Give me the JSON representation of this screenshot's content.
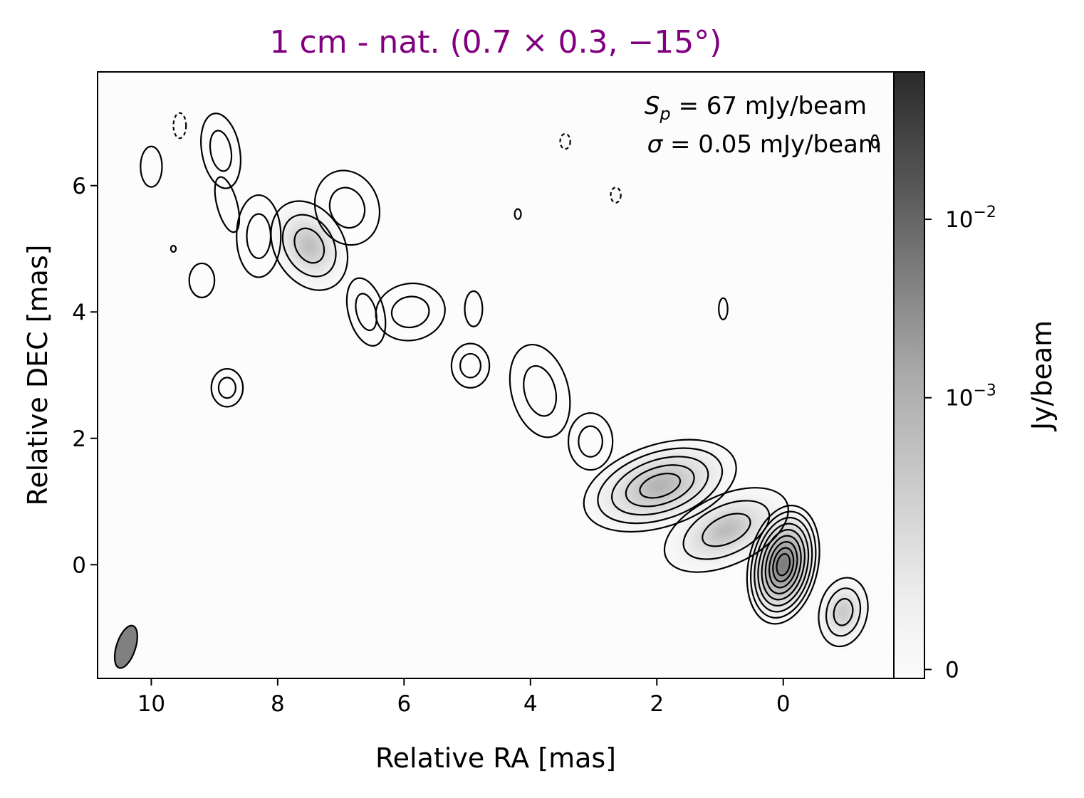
{
  "chart_data": {
    "type": "heatmap",
    "title": "1 cm - nat. (0.7 × 0.3, −15°)",
    "title_color": "#800080",
    "xlabel": "Relative RA [mas]",
    "ylabel": "Relative DEC [mas]",
    "xlim": [
      10.85,
      -1.75
    ],
    "ylim": [
      -1.8,
      7.8
    ],
    "x_reversed": true,
    "x_ticks": [
      10,
      8,
      6,
      4,
      2,
      0
    ],
    "y_ticks": [
      0,
      2,
      4,
      6
    ],
    "grid": false,
    "colormap": "greys",
    "colorbar": {
      "label": "Jy/beam",
      "scale": "symlog",
      "ticks": [
        {
          "value": 0,
          "base": "0",
          "exp": ""
        },
        {
          "value": 0.001,
          "base": "10",
          "exp": "−3"
        },
        {
          "value": 0.01,
          "base": "10",
          "exp": "−2"
        }
      ],
      "max": 0.067
    },
    "annotations": {
      "peak": {
        "symbol": "S",
        "sub": "p",
        "rest": " = 67 mJy/beam"
      },
      "noise": {
        "symbol": "σ",
        "rest": " = 0.05 mJy/beam"
      }
    },
    "peak_mJy_per_beam": 67,
    "rms_mJy_per_beam": 0.05,
    "beam": {
      "major_mas": 0.7,
      "minor_mas": 0.3,
      "pa_deg": -15,
      "center": [
        10.4,
        -1.3
      ]
    },
    "components": [
      {
        "ra": 0.0,
        "dec": 0.0,
        "rx": 0.55,
        "ry": 0.95,
        "rot": 12,
        "levels": 9
      },
      {
        "ra": 1.95,
        "dec": 1.25,
        "rx": 1.25,
        "ry": 0.65,
        "rot": -18,
        "levels": 5
      },
      {
        "ra": -0.95,
        "dec": -0.75,
        "rx": 0.38,
        "ry": 0.55,
        "rot": 12,
        "levels": 3
      },
      {
        "ra": 0.9,
        "dec": 0.55,
        "rx": 1.05,
        "ry": 0.55,
        "rot": -25,
        "levels": 3
      },
      {
        "ra": 3.05,
        "dec": 1.95,
        "rx": 0.35,
        "ry": 0.45,
        "rot": 0,
        "levels": 2
      },
      {
        "ra": 3.85,
        "dec": 2.75,
        "rx": 0.45,
        "ry": 0.75,
        "rot": -15,
        "levels": 2
      },
      {
        "ra": 4.95,
        "dec": 3.15,
        "rx": 0.3,
        "ry": 0.35,
        "rot": 0,
        "levels": 2
      },
      {
        "ra": 4.9,
        "dec": 4.05,
        "rx": 0.14,
        "ry": 0.28,
        "rot": 0,
        "levels": 1
      },
      {
        "ra": 5.9,
        "dec": 4.0,
        "rx": 0.55,
        "ry": 0.45,
        "rot": -10,
        "levels": 2
      },
      {
        "ra": 6.6,
        "dec": 4.0,
        "rx": 0.28,
        "ry": 0.55,
        "rot": -15,
        "levels": 2
      },
      {
        "ra": 7.5,
        "dec": 5.05,
        "rx": 0.55,
        "ry": 0.75,
        "rot": -30,
        "levels": 3
      },
      {
        "ra": 6.9,
        "dec": 5.65,
        "rx": 0.5,
        "ry": 0.6,
        "rot": -20,
        "levels": 2
      },
      {
        "ra": 8.3,
        "dec": 5.2,
        "rx": 0.35,
        "ry": 0.65,
        "rot": 0,
        "levels": 2
      },
      {
        "ra": 8.8,
        "dec": 5.7,
        "rx": 0.16,
        "ry": 0.45,
        "rot": -15,
        "levels": 1
      },
      {
        "ra": 8.9,
        "dec": 6.55,
        "rx": 0.3,
        "ry": 0.6,
        "rot": -10,
        "levels": 2
      },
      {
        "ra": 10.0,
        "dec": 6.3,
        "rx": 0.17,
        "ry": 0.32,
        "rot": 0,
        "levels": 1
      },
      {
        "ra": 9.2,
        "dec": 4.5,
        "rx": 0.2,
        "ry": 0.27,
        "rot": 0,
        "levels": 1
      },
      {
        "ra": 8.8,
        "dec": 2.8,
        "rx": 0.25,
        "ry": 0.3,
        "rot": 0,
        "levels": 2
      },
      {
        "ra": 0.95,
        "dec": 4.05,
        "rx": 0.07,
        "ry": 0.17,
        "rot": 0,
        "levels": 1
      },
      {
        "ra": 4.2,
        "dec": 5.55,
        "rx": 0.05,
        "ry": 0.08,
        "rot": 0,
        "levels": 1
      },
      {
        "ra": 9.65,
        "dec": 5.0,
        "rx": 0.04,
        "ry": 0.05,
        "rot": 0,
        "levels": 1
      },
      {
        "ra": -1.45,
        "dec": 6.7,
        "rx": 0.05,
        "ry": 0.1,
        "rot": 0,
        "levels": 1
      }
    ],
    "negative_contours": [
      {
        "ra": 9.55,
        "dec": 6.95,
        "rx": 0.1,
        "ry": 0.2
      },
      {
        "ra": 2.65,
        "dec": 5.85,
        "rx": 0.08,
        "ry": 0.12
      },
      {
        "ra": 3.45,
        "dec": 6.7,
        "rx": 0.08,
        "ry": 0.12
      }
    ]
  }
}
